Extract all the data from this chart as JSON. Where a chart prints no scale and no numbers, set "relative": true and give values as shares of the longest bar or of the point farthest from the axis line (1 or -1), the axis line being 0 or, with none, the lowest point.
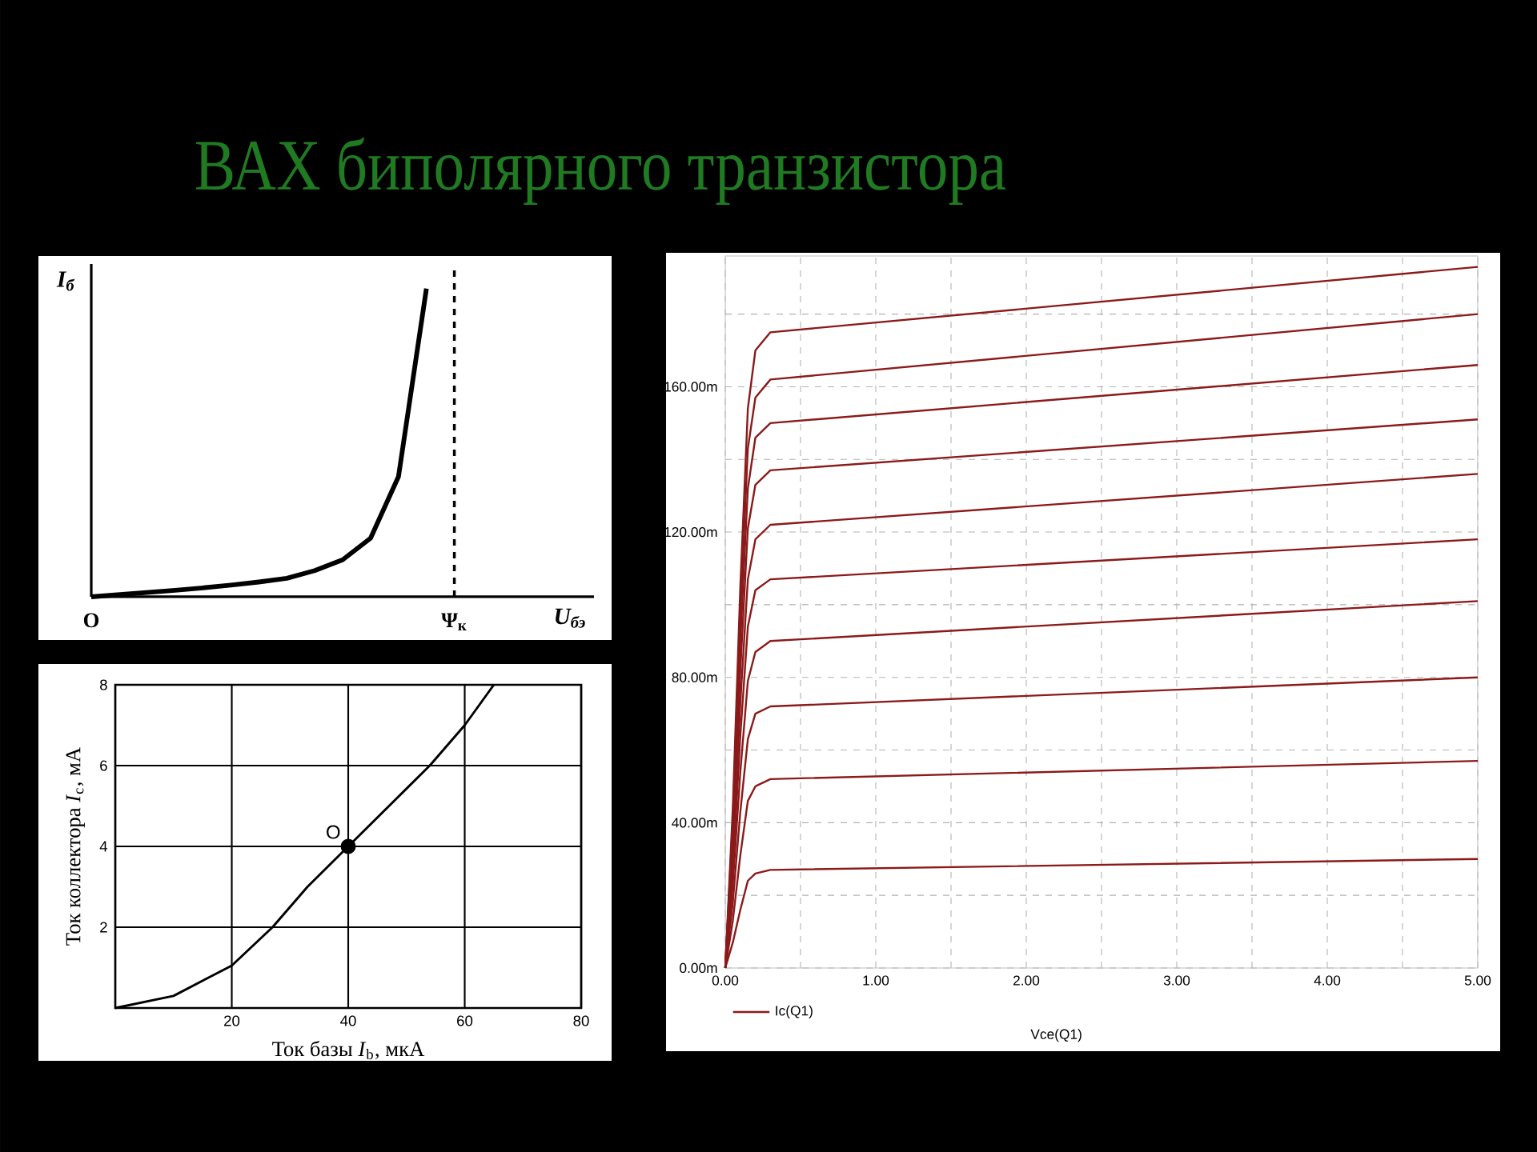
{
  "chart_data": [
    {
      "type": "line",
      "title": "ВАХ биполярного транзистора",
      "xlabel": "U$_{бэ}$",
      "ylabel": "I$_{б}$",
      "relative": true,
      "categories": [
        "O",
        null,
        null,
        null,
        null,
        null,
        null,
        null,
        null,
        null,
        null,
        null,
        null,
        "Ψ$_{к}$",
        null,
        null,
        null,
        null,
        null
      ],
      "series": [
        {
          "color": "#000000",
          "values": [
            0,
            0.007,
            0.014,
            0.021,
            0.029,
            0.038,
            0.048,
            0.06,
            0.085,
            0.12,
            0.19,
            0.39,
            1,
            null,
            null,
            null,
            null,
            null,
            null
          ]
        }
      ],
      "ref_lines": [
        {
          "axis": "x",
          "value": "Ψ$_{к}$",
          "color": "#000000",
          "line_style": "dashed"
        }
      ]
    },
    {
      "type": "line",
      "xlabel": "Ток базы *I*$_{b}$, мкА",
      "ylabel": "Ток коллектора *I*$_{c}$, мА",
      "x": [
        0,
        10,
        20,
        27,
        33,
        40,
        47,
        54,
        60,
        65
      ],
      "series": [
        {
          "color": "#000000",
          "values": [
            0,
            0.3,
            1.05,
            2,
            3,
            4,
            5,
            6,
            7,
            8
          ]
        },
        {
          "type": "scatter",
          "marker": "circle",
          "color": "#000000",
          "x": [
            40
          ],
          "values": [
            4
          ]
        }
      ],
      "xlim": [
        0,
        80
      ],
      "ylim": [
        0,
        8
      ],
      "xticks": [
        20,
        40,
        60,
        80
      ],
      "yticks": [
        2,
        4,
        6,
        8
      ],
      "grid": true,
      "annotations": [
        {
          "text": "O",
          "x": 40,
          "y": 4
        }
      ]
    },
    {
      "type": "line",
      "xlabel": "Vce(Q1)",
      "legend": "bottom left",
      "x": [
        0,
        0.05,
        0.1,
        0.15,
        0.2,
        0.3,
        5
      ],
      "series": [
        {
          "name": "Ic(Q1)",
          "color": "#8b1a1a",
          "values": [
            0,
            7,
            16,
            24,
            26,
            27,
            30
          ]
        },
        {
          "color": "#8b1a1a",
          "values": [
            0,
            13,
            31,
            46,
            50,
            52,
            57
          ]
        },
        {
          "color": "#8b1a1a",
          "values": [
            0,
            18,
            43,
            63,
            70,
            72,
            80
          ]
        },
        {
          "color": "#8b1a1a",
          "values": [
            0,
            23,
            54,
            79,
            87,
            90,
            101
          ]
        },
        {
          "color": "#8b1a1a",
          "values": [
            0,
            27,
            64,
            94,
            104,
            107,
            118
          ]
        },
        {
          "color": "#8b1a1a",
          "values": [
            0,
            31,
            73,
            107,
            118,
            122,
            136
          ]
        },
        {
          "color": "#8b1a1a",
          "values": [
            0,
            34,
            82,
            121,
            133,
            137,
            151
          ]
        },
        {
          "color": "#8b1a1a",
          "values": [
            0,
            38,
            90,
            132,
            146,
            150,
            166
          ]
        },
        {
          "color": "#8b1a1a",
          "values": [
            0,
            41,
            97,
            143,
            157,
            162,
            180
          ]
        },
        {
          "color": "#8b1a1a",
          "values": [
            0,
            44,
            105,
            154,
            170,
            175,
            193
          ]
        }
      ],
      "xlim": [
        0,
        5
      ],
      "ylim": [
        0,
        196
      ],
      "xticks": [
        {
          "value": 0,
          "label": "0.00"
        },
        {
          "value": 0.5,
          "label": null
        },
        {
          "value": 1,
          "label": "1.00"
        },
        {
          "value": 1.5,
          "label": null
        },
        {
          "value": 2,
          "label": "2.00"
        },
        {
          "value": 2.5,
          "label": null
        },
        {
          "value": 3,
          "label": "3.00"
        },
        {
          "value": 3.5,
          "label": null
        },
        {
          "value": 4,
          "label": "4.00"
        },
        {
          "value": 4.5,
          "label": null
        },
        {
          "value": 5,
          "label": "5.00"
        }
      ],
      "yticks": [
        {
          "value": 0,
          "label": "0.00m"
        },
        {
          "value": 20,
          "label": null
        },
        {
          "value": 40,
          "label": "40.00m"
        },
        {
          "value": 60,
          "label": null
        },
        {
          "value": 80,
          "label": "80.00m"
        },
        {
          "value": 100,
          "label": null
        },
        {
          "value": 120,
          "label": "120.00m"
        },
        {
          "value": 140,
          "label": null
        },
        {
          "value": 160,
          "label": "160.00m"
        },
        {
          "value": 180,
          "label": null
        }
      ],
      "grid": true
    }
  ]
}
